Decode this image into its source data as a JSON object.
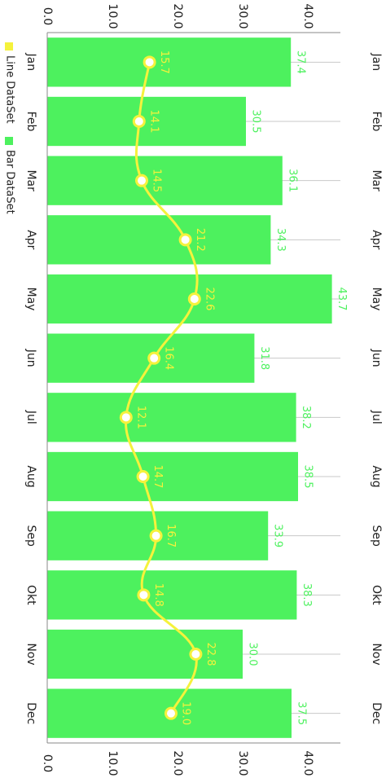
{
  "chart_data": {
    "type": "bar",
    "orientation": "rotated-90-clockwise",
    "categories": [
      "Jan",
      "Feb",
      "Mar",
      "Apr",
      "May",
      "Jun",
      "Jul",
      "Aug",
      "Sep",
      "Okt",
      "Nov",
      "Dec"
    ],
    "series": [
      {
        "name": "Bar DataSet",
        "type": "bar",
        "color": "#4df15e",
        "values": [
          37.4,
          30.5,
          36.1,
          34.3,
          43.7,
          31.8,
          38.2,
          38.5,
          33.9,
          38.3,
          30.0,
          37.5
        ]
      },
      {
        "name": "Line DataSet",
        "type": "line",
        "color": "#f5f23c",
        "values": [
          15.7,
          14.1,
          14.5,
          21.2,
          22.6,
          16.4,
          12.1,
          14.7,
          16.7,
          14.8,
          22.8,
          19.0
        ]
      }
    ],
    "value_labels": {
      "bar": [
        "37.4",
        "30.5",
        "36.1",
        "34.3",
        "43.7",
        "31.8",
        "38.2",
        "38.5",
        "33.9",
        "38.3",
        "30.0",
        "37.5"
      ],
      "line": [
        "15.7",
        "14.1",
        "14.5",
        "21.2",
        "22.6",
        "16.4",
        "12.1",
        "14.7",
        "16.7",
        "14.8",
        "22.8",
        "19.0"
      ]
    },
    "ylim": [
      0,
      45
    ],
    "yticks": [
      0,
      10,
      20,
      30,
      40
    ],
    "ytick_labels": [
      "0.0",
      "10.0",
      "20.0",
      "30.0",
      "40.0"
    ],
    "grid": "vertical lines at category centers",
    "legend": {
      "position": "bottom-left",
      "entries": [
        "Line DataSet",
        "Bar DataSet"
      ]
    }
  }
}
